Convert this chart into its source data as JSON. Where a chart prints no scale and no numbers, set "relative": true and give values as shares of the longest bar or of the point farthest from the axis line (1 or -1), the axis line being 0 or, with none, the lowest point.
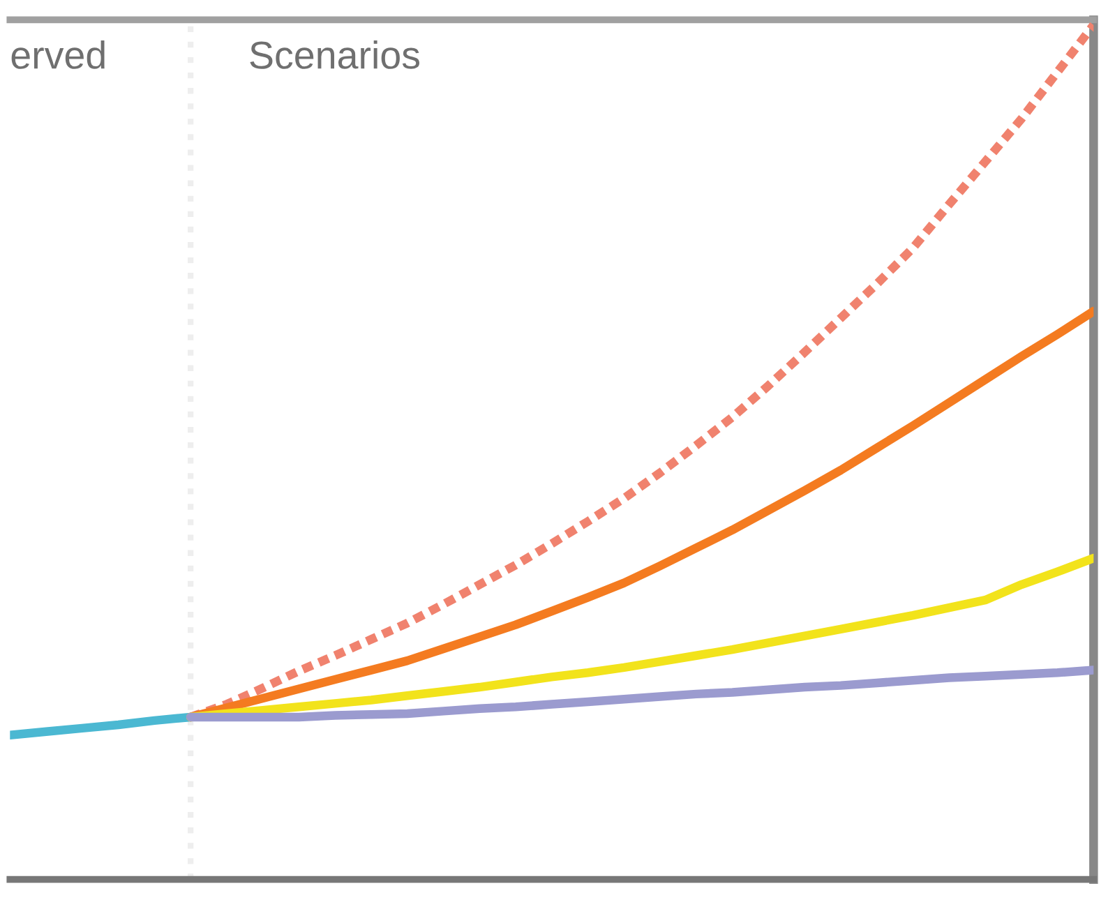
{
  "chart_data": {
    "type": "line",
    "relative": true,
    "categories": [
      null,
      null,
      null,
      null,
      null,
      null,
      null,
      null,
      null,
      null,
      null,
      null,
      null,
      null,
      null,
      null,
      null,
      null,
      null,
      null,
      null,
      null,
      null,
      null,
      null,
      null,
      null,
      null,
      null,
      null,
      null
    ],
    "series": [
      {
        "color": "#4bb8d2",
        "values": [
          0.169,
          0.173,
          0.177,
          0.181,
          0.186,
          0.19,
          null,
          null,
          null,
          null,
          null,
          null,
          null,
          null,
          null,
          null,
          null,
          null,
          null,
          null,
          null,
          null,
          null,
          null,
          null,
          null,
          null,
          null,
          null,
          null,
          null
        ]
      },
      {
        "color": "#f0826e",
        "line_style": "dashed",
        "values": [
          null,
          null,
          null,
          null,
          null,
          0.19,
          0.205,
          0.224,
          0.244,
          0.262,
          0.281,
          0.3,
          0.322,
          0.345,
          0.368,
          0.393,
          0.419,
          0.446,
          0.476,
          0.508,
          0.541,
          0.578,
          0.617,
          0.657,
          0.697,
          0.739,
          0.79,
          0.84,
          0.89,
          0.945,
          1.0
        ]
      },
      {
        "color": "#f47b20",
        "values": [
          null,
          null,
          null,
          null,
          null,
          0.19,
          0.201,
          0.212,
          0.223,
          0.234,
          0.245,
          0.256,
          0.27,
          0.284,
          0.298,
          0.314,
          0.33,
          0.347,
          0.367,
          0.388,
          0.409,
          0.432,
          0.455,
          0.479,
          0.505,
          0.531,
          0.558,
          0.585,
          0.612,
          0.638,
          0.665
        ]
      },
      {
        "color": "#f2e31b",
        "values": [
          null,
          null,
          null,
          null,
          null,
          0.19,
          0.194,
          0.198,
          0.202,
          0.206,
          0.21,
          0.215,
          0.22,
          0.225,
          0.231,
          0.237,
          0.242,
          0.248,
          0.255,
          0.262,
          0.269,
          0.277,
          0.285,
          0.293,
          0.301,
          0.309,
          0.318,
          0.327,
          0.345,
          0.36,
          0.376
        ]
      },
      {
        "color": "#9b9bcf",
        "values": [
          null,
          null,
          null,
          null,
          null,
          0.19,
          0.19,
          0.19,
          0.19,
          0.192,
          0.193,
          0.194,
          0.197,
          0.2,
          0.202,
          0.205,
          0.208,
          0.211,
          0.214,
          0.217,
          0.219,
          0.222,
          0.225,
          0.227,
          0.23,
          0.233,
          0.236,
          0.238,
          0.24,
          0.242,
          0.245
        ]
      }
    ],
    "annotations": [
      "erved",
      "Scenarios"
    ],
    "legend": false
  }
}
